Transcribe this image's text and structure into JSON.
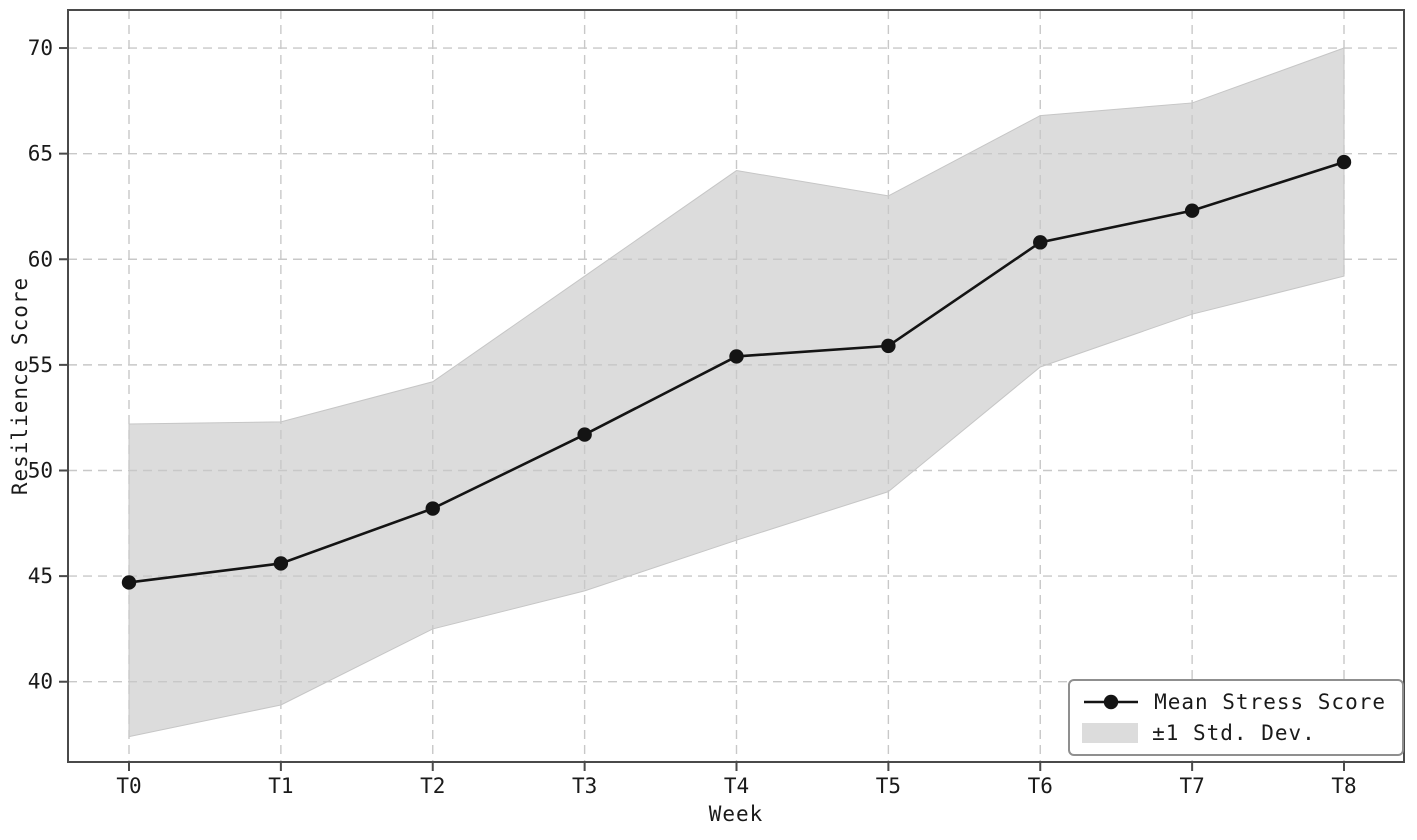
{
  "figure": {
    "background": "#ffffff"
  },
  "chart_data": {
    "type": "line",
    "title": "",
    "xlabel": "Week",
    "ylabel": "Resilience Score",
    "categories": [
      "T0",
      "T1",
      "T2",
      "T3",
      "T4",
      "T5",
      "T6",
      "T7",
      "T8"
    ],
    "series": [
      {
        "name": "Mean Stress Score",
        "role": "mean",
        "values": [
          44.7,
          45.6,
          48.2,
          51.7,
          55.4,
          55.9,
          60.8,
          62.3,
          64.6
        ]
      },
      {
        "name": "+1 Std. Dev. (band upper edge)",
        "role": "band-upper",
        "values": [
          52.2,
          52.3,
          54.2,
          59.2,
          64.2,
          63.0,
          66.8,
          67.4,
          70.0
        ]
      },
      {
        "name": "-1 Std. Dev. (band lower edge)",
        "role": "band-lower",
        "values": [
          37.4,
          38.9,
          42.5,
          44.3,
          46.7,
          49.0,
          54.9,
          57.4,
          59.2
        ]
      }
    ],
    "ylim": [
      36.2,
      71.8
    ],
    "yticks": [
      40,
      45,
      50,
      55,
      60,
      65,
      70
    ],
    "grid": true,
    "grid_style": "dashed",
    "legend_position": "lower right",
    "legend": [
      {
        "label": "Mean Stress Score",
        "swatch": "line-with-dot-marker"
      },
      {
        "label": "±1 Std. Dev.",
        "swatch": "gray-patch"
      }
    ]
  },
  "colors": {
    "line": "#141414",
    "marker": "#141414",
    "band_fill": "#dcdcdc",
    "band_edge": "#c6c6c6",
    "grid": "#c8c8c8",
    "frame": "#4a4a4a",
    "tick_text": "#1a1a1a",
    "legend_border": "#8f8f8f"
  }
}
